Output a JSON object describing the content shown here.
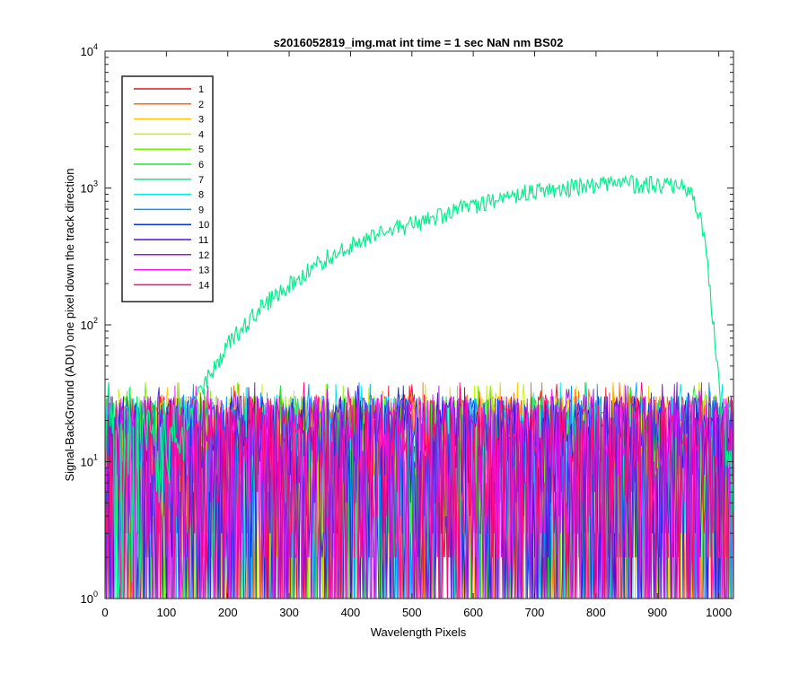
{
  "figure": {
    "title": "s2016052819_img.mat int time = 1 sec  NaN nm BS02"
  },
  "chart_data": {
    "type": "line",
    "title": "s2016052819_img.mat int time = 1 sec  NaN nm BS02",
    "xlabel": "Wavelength Pixels",
    "ylabel": "Signal-BackGround (ADU) one pixel down the track direction",
    "xlim": [
      0,
      1024
    ],
    "ylim": [
      1,
      10000
    ],
    "yscale": "log",
    "grid": false,
    "legend_position": "top-left",
    "xticks": [
      0,
      100,
      200,
      300,
      400,
      500,
      600,
      700,
      800,
      900,
      1000
    ],
    "yticks": [
      1,
      10,
      100,
      1000,
      10000
    ],
    "ytick_labels": [
      {
        "base": "10",
        "exp": "0"
      },
      {
        "base": "10",
        "exp": "1"
      },
      {
        "base": "10",
        "exp": "2"
      },
      {
        "base": "10",
        "exp": "3"
      },
      {
        "base": "10",
        "exp": "4"
      }
    ],
    "noise_band": {
      "min": 1,
      "max": 40
    },
    "series": [
      {
        "name": "1",
        "color": "#e6141e"
      },
      {
        "name": "2",
        "color": "#ff6a00"
      },
      {
        "name": "3",
        "color": "#ffc800"
      },
      {
        "name": "4",
        "color": "#c8f000"
      },
      {
        "name": "5",
        "color": "#78f000"
      },
      {
        "name": "6",
        "color": "#1ee632"
      },
      {
        "name": "7",
        "color": "#00f08c",
        "signal_profile": [
          [
            0,
            1
          ],
          [
            60,
            1
          ],
          [
            100,
            8
          ],
          [
            150,
            30
          ],
          [
            200,
            72
          ],
          [
            250,
            130
          ],
          [
            300,
            200
          ],
          [
            350,
            290
          ],
          [
            400,
            380
          ],
          [
            450,
            470
          ],
          [
            500,
            550
          ],
          [
            550,
            640
          ],
          [
            600,
            750
          ],
          [
            650,
            860
          ],
          [
            700,
            960
          ],
          [
            750,
            1010
          ],
          [
            800,
            1050
          ],
          [
            850,
            1080
          ],
          [
            900,
            1060
          ],
          [
            940,
            1050
          ],
          [
            960,
            850
          ],
          [
            975,
            500
          ],
          [
            985,
            200
          ],
          [
            995,
            70
          ],
          [
            1005,
            20
          ],
          [
            1015,
            5
          ],
          [
            1024,
            2
          ]
        ]
      },
      {
        "name": "8",
        "color": "#00e6e6"
      },
      {
        "name": "9",
        "color": "#0096ff"
      },
      {
        "name": "10",
        "color": "#0032f0"
      },
      {
        "name": "11",
        "color": "#5014dc"
      },
      {
        "name": "12",
        "color": "#a014dc"
      },
      {
        "name": "13",
        "color": "#f014f0"
      },
      {
        "name": "14",
        "color": "#ff0a78"
      }
    ]
  }
}
